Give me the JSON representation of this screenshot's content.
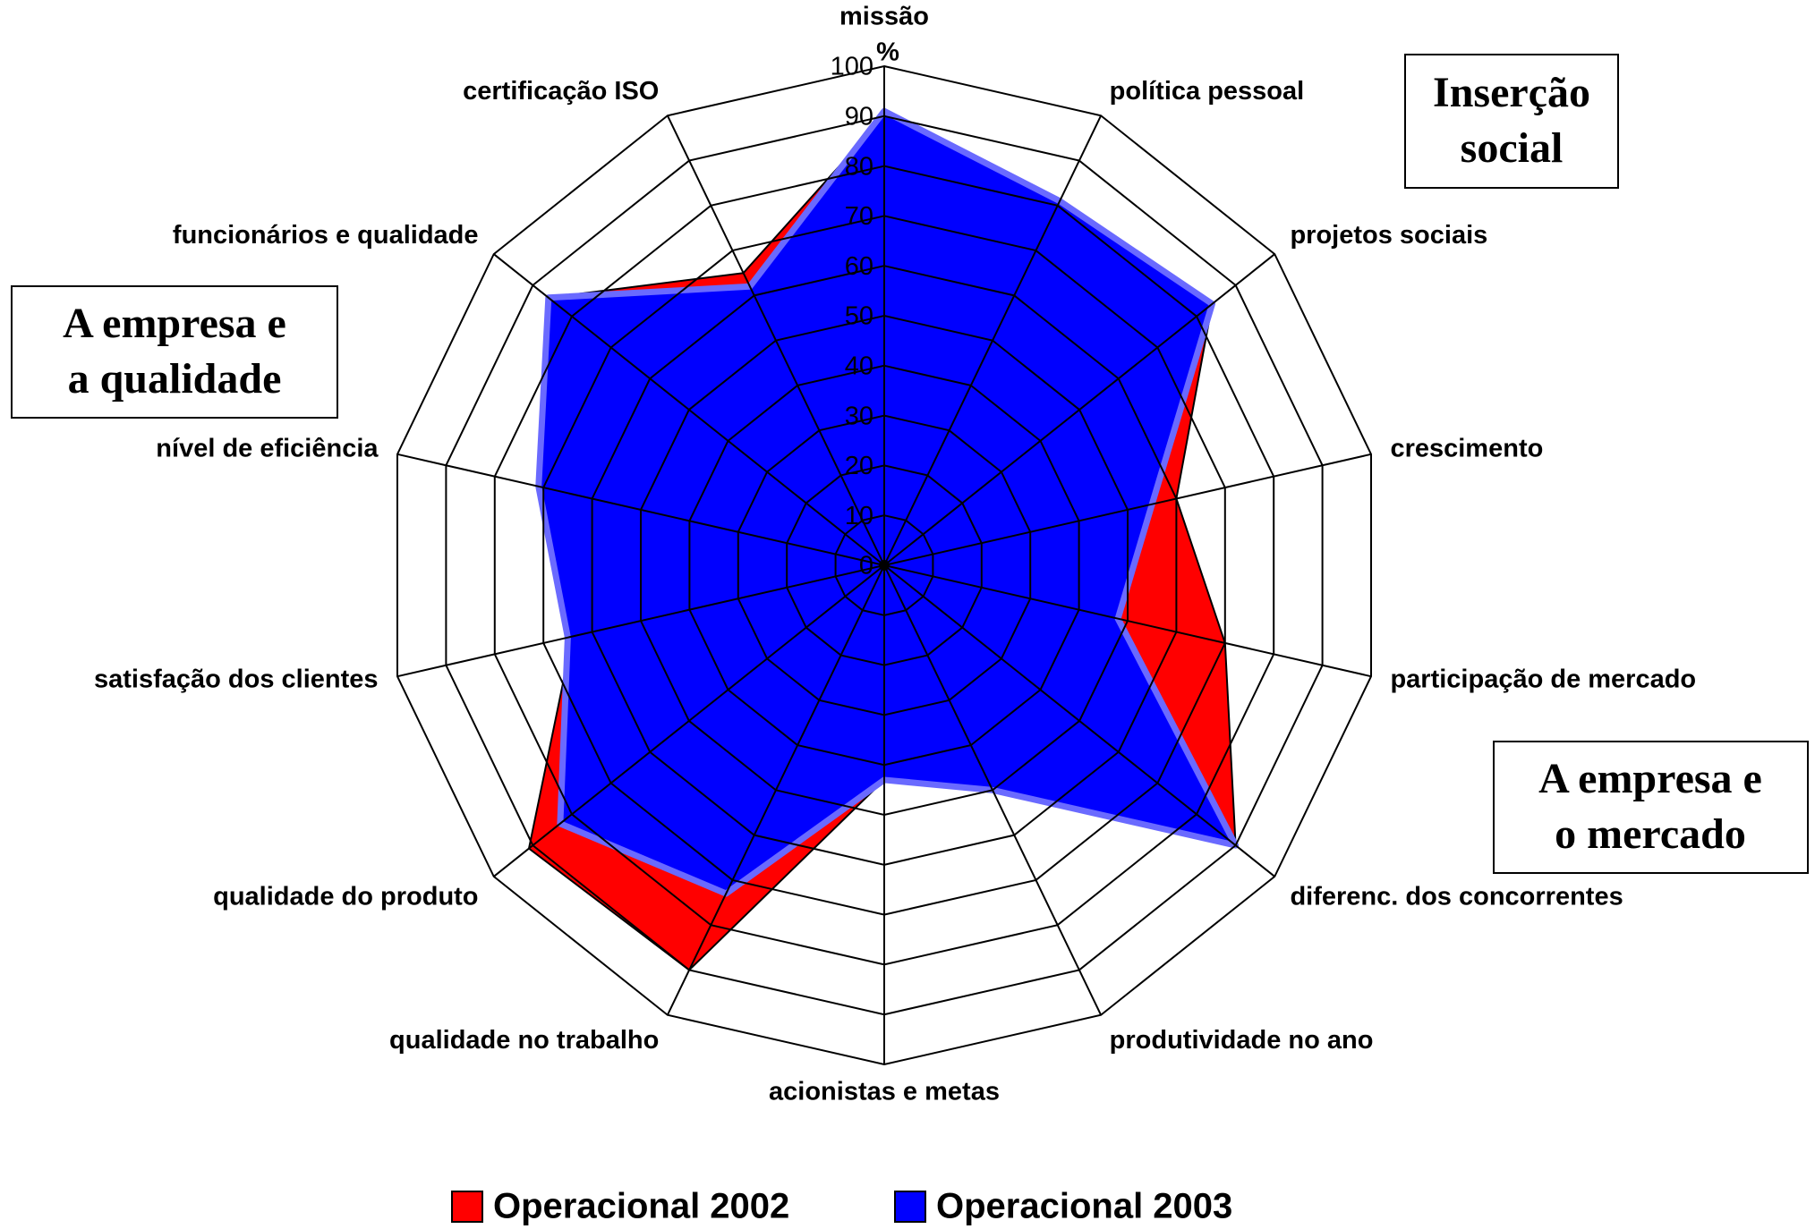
{
  "chart_data": {
    "type": "radar",
    "axis_label": "%",
    "categories": [
      "missão",
      "política pessoal",
      "projetos sociais",
      "crescimento",
      "participação de mercado",
      "diferenc. dos concorrentes",
      "produtividade no ano",
      "acionistas e metas",
      "qualidade no trabalho",
      "qualidade do produto",
      "satisfação dos clientes",
      "nível de eficiência",
      "funcionários e qualidade",
      "certificação ISO"
    ],
    "series": [
      {
        "name": "Operacional 2002",
        "color": "#ff0000",
        "values": [
          90,
          80,
          84,
          60,
          70,
          90,
          50,
          43,
          90,
          91,
          64,
          71,
          86,
          65
        ]
      },
      {
        "name": "Operacional 2003",
        "color": "#0000ff",
        "values": [
          91,
          81,
          84,
          55,
          48,
          90,
          50,
          43,
          73,
          83,
          65,
          71,
          86,
          62
        ]
      }
    ],
    "ylim": [
      0,
      100
    ],
    "yticks": [
      0,
      10,
      20,
      30,
      40,
      50,
      60,
      70,
      80,
      90,
      100
    ],
    "annotations": [
      [
        "Inserção",
        "social"
      ],
      [
        "A empresa e",
        "a qualidade"
      ],
      [
        "A empresa e",
        "o mercado"
      ]
    ],
    "legend": "bottom"
  }
}
